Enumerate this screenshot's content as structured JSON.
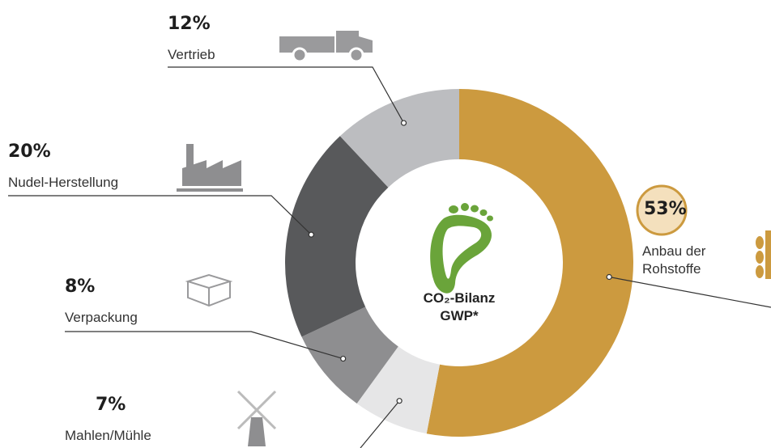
{
  "chart_data": {
    "type": "donut",
    "categories": [
      "Anbau der Rohstoffe",
      "Mahlen/Mühle",
      "Verpackung",
      "Nudel-Herstellung",
      "Vertrieb"
    ],
    "values": [
      53,
      7,
      8,
      20,
      12
    ],
    "value_labels": [
      "53%",
      "7%",
      "8%",
      "20%",
      "12%"
    ],
    "colors": [
      "#cc9a3f",
      "#e6e6e7",
      "#8e8e90",
      "#58595b",
      "#bcbdc0"
    ],
    "center_labels": [
      "CO₂-Bilanz",
      "GWP*"
    ]
  }
}
